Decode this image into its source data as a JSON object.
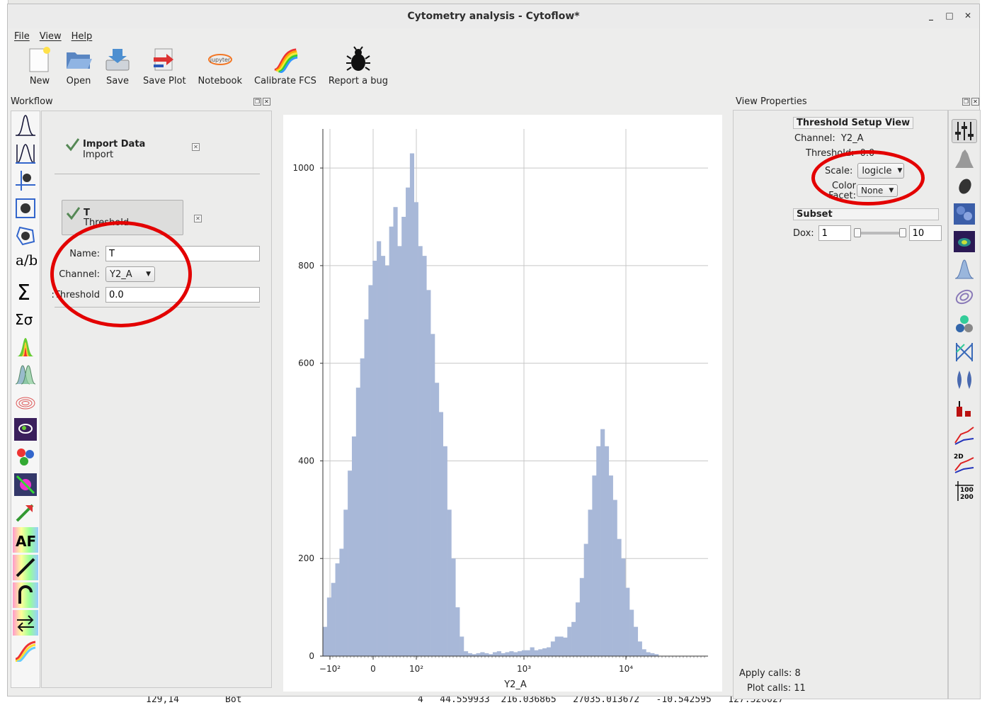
{
  "window": {
    "title": "Cytometry analysis - Cytoflow*",
    "controls": {
      "minimize": "_",
      "maximize": "□",
      "close": "✕"
    }
  },
  "menu": [
    "File",
    "View",
    "Help"
  ],
  "toolbar": [
    {
      "label": "New",
      "icon": "new-file-icon"
    },
    {
      "label": "Open",
      "icon": "folder-open-icon"
    },
    {
      "label": "Save",
      "icon": "save-disk-icon"
    },
    {
      "label": "Save Plot",
      "icon": "save-plot-icon"
    },
    {
      "label": "Notebook",
      "icon": "jupyter-icon",
      "icon_text": "jupyter"
    },
    {
      "label": "Calibrate FCS",
      "icon": "rainbow-icon"
    },
    {
      "label": "Report a bug",
      "icon": "bug-icon"
    }
  ],
  "workflow": {
    "title": "Workflow",
    "items": [
      {
        "name": "Import Data",
        "sub": "Import"
      },
      {
        "name": "T",
        "sub": "Threshold"
      }
    ],
    "form": {
      "name_label": "Name:",
      "name_value": "T",
      "channel_label": "Channel:",
      "channel_value": "Y2_A",
      "threshold_label": "Threshold:",
      "threshold_value": "0.0"
    },
    "op_icons_text": {
      "af": "AF",
      "sum": "Σ",
      "sigma": "Σσ",
      "ab": "a/b"
    }
  },
  "view_properties": {
    "title": "View Properties",
    "group_title": "Threshold Setup View",
    "channel_label": "Channel:",
    "channel_value": "Y2_A",
    "threshold_label": "Threshold:",
    "threshold_value": "0.0",
    "scale_label": "Scale:",
    "scale_value": "logicle",
    "color_facet_label": "Color Facet:",
    "color_facet_value": "None",
    "subset_title": "Subset",
    "dox_label": "Dox:",
    "dox_min": "1",
    "dox_max": "10",
    "apply_calls_label": "Apply calls:",
    "apply_calls": "8",
    "plot_calls_label": "Plot calls:",
    "plot_calls": "11",
    "view_icon_text": {
      "table_a": "100",
      "table_b": "200",
      "twod": "2D"
    }
  },
  "background": {
    "bottom_left": "129,14",
    "bottom_left2": "Bot",
    "bottom_right": "4   44.559933  216.036865   27035.013672   -10.542595   127.326027"
  },
  "chart_data": {
    "type": "bar",
    "xlabel": "Y2_A",
    "ylabel": "",
    "x_ticks": [
      "−10²",
      "0",
      "10²",
      "10³",
      "10⁴"
    ],
    "y_ticks": [
      "0",
      "200",
      "400",
      "600",
      "800",
      "1000"
    ],
    "ylim": [
      0,
      1080
    ],
    "values": [
      60,
      120,
      150,
      190,
      220,
      300,
      380,
      450,
      550,
      610,
      690,
      760,
      810,
      850,
      820,
      800,
      880,
      920,
      840,
      900,
      960,
      1030,
      930,
      840,
      820,
      750,
      660,
      560,
      500,
      430,
      300,
      200,
      100,
      40,
      10,
      6,
      4,
      6,
      8,
      6,
      4,
      8,
      10,
      6,
      8,
      10,
      8,
      10,
      12,
      12,
      18,
      12,
      14,
      16,
      18,
      30,
      40,
      40,
      38,
      60,
      70,
      110,
      160,
      230,
      300,
      370,
      430,
      465,
      430,
      370,
      320,
      240,
      200,
      140,
      95,
      60,
      30,
      14,
      8,
      6,
      4
    ],
    "bar_color": "#a8b8d8"
  }
}
